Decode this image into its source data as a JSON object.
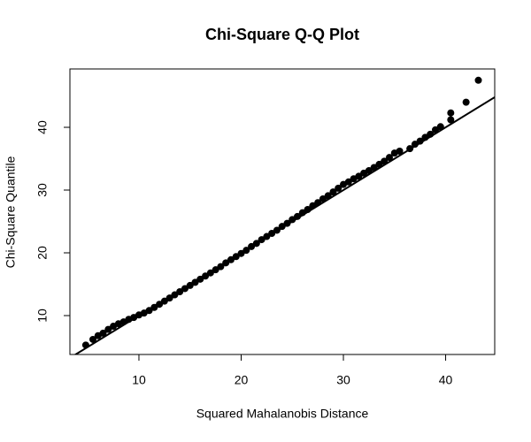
{
  "chart_data": {
    "type": "scatter",
    "title": "Chi-Square Q-Q Plot",
    "x_label": "Squared Mahalanobis Distance",
    "y_label": "Chi-Square Quantile",
    "xlim": [
      3.25,
      44.8
    ],
    "ylim": [
      3.8,
      49.3
    ],
    "xticks": [
      10,
      20,
      30,
      40
    ],
    "yticks": [
      10,
      20,
      30,
      40
    ],
    "color": "#000000",
    "reference_line": {
      "intercept": 0,
      "slope": 1
    },
    "x": [
      4.8,
      5.5,
      6.0,
      6.5,
      7.0,
      7.5,
      8.0,
      8.5,
      9.0,
      9.5,
      10.0,
      10.5,
      11.0,
      11.5,
      12.0,
      12.5,
      13.0,
      13.5,
      14.0,
      14.5,
      15.0,
      15.5,
      16.0,
      16.5,
      17.0,
      17.5,
      18.0,
      18.5,
      19.0,
      19.5,
      20.0,
      20.5,
      21.0,
      21.5,
      22.0,
      22.5,
      23.0,
      23.5,
      24.0,
      24.5,
      25.0,
      25.5,
      26.0,
      26.5,
      27.0,
      27.5,
      28.0,
      28.5,
      29.0,
      29.5,
      30.0,
      30.5,
      31.0,
      31.5,
      32.0,
      32.5,
      33.0,
      33.5,
      34.0,
      34.5,
      35.0,
      35.5,
      36.5,
      37.0,
      37.5,
      38.0,
      38.5,
      39.0,
      39.5,
      40.5,
      40.5,
      42.0,
      43.2
    ],
    "values": [
      5.3,
      6.2,
      6.8,
      7.2,
      7.8,
      8.3,
      8.7,
      9.0,
      9.4,
      9.7,
      10.1,
      10.4,
      10.8,
      11.3,
      11.8,
      12.3,
      12.8,
      13.3,
      13.8,
      14.3,
      14.8,
      15.3,
      15.8,
      16.3,
      16.8,
      17.3,
      17.8,
      18.4,
      18.9,
      19.4,
      19.9,
      20.4,
      21.0,
      21.5,
      22.1,
      22.6,
      23.1,
      23.6,
      24.2,
      24.7,
      25.3,
      25.8,
      26.4,
      26.9,
      27.5,
      28.0,
      28.6,
      29.1,
      29.7,
      30.3,
      30.9,
      31.3,
      31.8,
      32.2,
      32.7,
      33.1,
      33.6,
      34.1,
      34.6,
      35.2,
      35.9,
      36.2,
      36.6,
      37.3,
      37.8,
      38.4,
      38.9,
      39.6,
      40.1,
      41.2,
      42.3,
      44.0,
      47.5
    ]
  }
}
